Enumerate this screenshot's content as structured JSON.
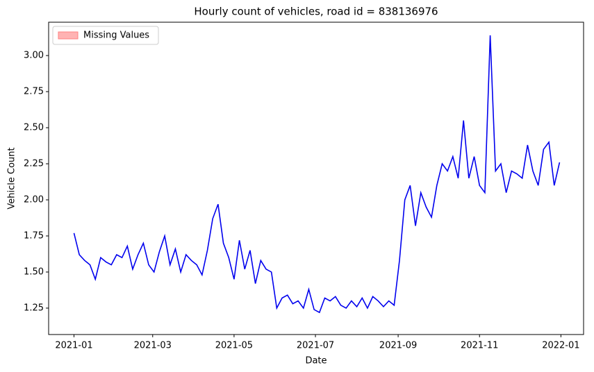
{
  "chart_data": {
    "type": "line",
    "title": "Hourly count of vehicles, road id = 838136976",
    "x_label": "Date",
    "y_label": "Vehicle Count",
    "x": [
      "2021-01-01",
      "2021-01-05",
      "2021-01-09",
      "2021-01-13",
      "2021-01-17",
      "2021-01-21",
      "2021-01-25",
      "2021-01-29",
      "2021-02-02",
      "2021-02-06",
      "2021-02-10",
      "2021-02-14",
      "2021-02-18",
      "2021-02-22",
      "2021-02-26",
      "2021-03-02",
      "2021-03-06",
      "2021-03-10",
      "2021-03-14",
      "2021-03-18",
      "2021-03-22",
      "2021-03-26",
      "2021-03-30",
      "2021-04-03",
      "2021-04-07",
      "2021-04-11",
      "2021-04-15",
      "2021-04-19",
      "2021-04-23",
      "2021-04-27",
      "2021-05-01",
      "2021-05-05",
      "2021-05-09",
      "2021-05-13",
      "2021-05-17",
      "2021-05-21",
      "2021-05-25",
      "2021-05-29",
      "2021-06-02",
      "2021-06-06",
      "2021-06-10",
      "2021-06-14",
      "2021-06-18",
      "2021-06-22",
      "2021-06-26",
      "2021-06-30",
      "2021-07-04",
      "2021-07-08",
      "2021-07-12",
      "2021-07-16",
      "2021-07-20",
      "2021-07-24",
      "2021-07-28",
      "2021-08-01",
      "2021-08-05",
      "2021-08-09",
      "2021-08-13",
      "2021-08-17",
      "2021-08-21",
      "2021-08-25",
      "2021-08-29",
      "2021-09-02",
      "2021-09-06",
      "2021-09-10",
      "2021-09-14",
      "2021-09-18",
      "2021-09-22",
      "2021-09-26",
      "2021-09-30",
      "2021-10-04",
      "2021-10-08",
      "2021-10-12",
      "2021-10-16",
      "2021-10-20",
      "2021-10-24",
      "2021-10-28",
      "2021-11-01",
      "2021-11-05",
      "2021-11-09",
      "2021-11-13",
      "2021-11-17",
      "2021-11-21",
      "2021-11-25",
      "2021-11-29",
      "2021-12-03",
      "2021-12-07",
      "2021-12-11",
      "2021-12-15",
      "2021-12-19",
      "2021-12-23",
      "2021-12-27",
      "2021-12-31"
    ],
    "series": [
      {
        "color": "#0000ee",
        "values": [
          1.77,
          1.62,
          1.58,
          1.55,
          1.45,
          1.6,
          1.57,
          1.55,
          1.62,
          1.6,
          1.68,
          1.52,
          1.62,
          1.7,
          1.55,
          1.5,
          1.64,
          1.75,
          1.55,
          1.66,
          1.5,
          1.62,
          1.58,
          1.55,
          1.48,
          1.65,
          1.87,
          1.97,
          1.7,
          1.6,
          1.45,
          1.72,
          1.52,
          1.65,
          1.42,
          1.58,
          1.52,
          1.5,
          1.25,
          1.32,
          1.34,
          1.28,
          1.3,
          1.25,
          1.38,
          1.24,
          1.22,
          1.32,
          1.3,
          1.33,
          1.27,
          1.25,
          1.3,
          1.26,
          1.32,
          1.25,
          1.33,
          1.3,
          1.26,
          1.3,
          1.27,
          1.58,
          2.0,
          2.1,
          1.82,
          2.05,
          1.95,
          1.88,
          2.1,
          2.25,
          2.2,
          2.3,
          2.15,
          2.55,
          2.15,
          2.3,
          2.1,
          2.05,
          3.14,
          2.2,
          2.25,
          2.05,
          2.2,
          2.18,
          2.15,
          2.38,
          2.2,
          2.1,
          2.35,
          2.4,
          2.1,
          2.26
        ]
      }
    ],
    "xlim": [
      "2020-12-13",
      "2022-01-18"
    ],
    "xticks": [
      "2021-01",
      "2021-03",
      "2021-05",
      "2021-07",
      "2021-09",
      "2021-11",
      "2022-01"
    ],
    "ylim": [
      1.067,
      3.231
    ],
    "yticks": [
      1.25,
      {
        "value": 1.5,
        "label": "1.50"
      },
      1.75,
      {
        "value": 2,
        "label": "2.00"
      },
      2.25,
      {
        "value": 2.5,
        "label": "2.50"
      },
      2.75,
      {
        "value": 3,
        "label": "3.00"
      }
    ],
    "legend": {
      "label": "Missing Values",
      "color": "#ffb3b3",
      "loc": "upper left"
    },
    "grid": false
  }
}
